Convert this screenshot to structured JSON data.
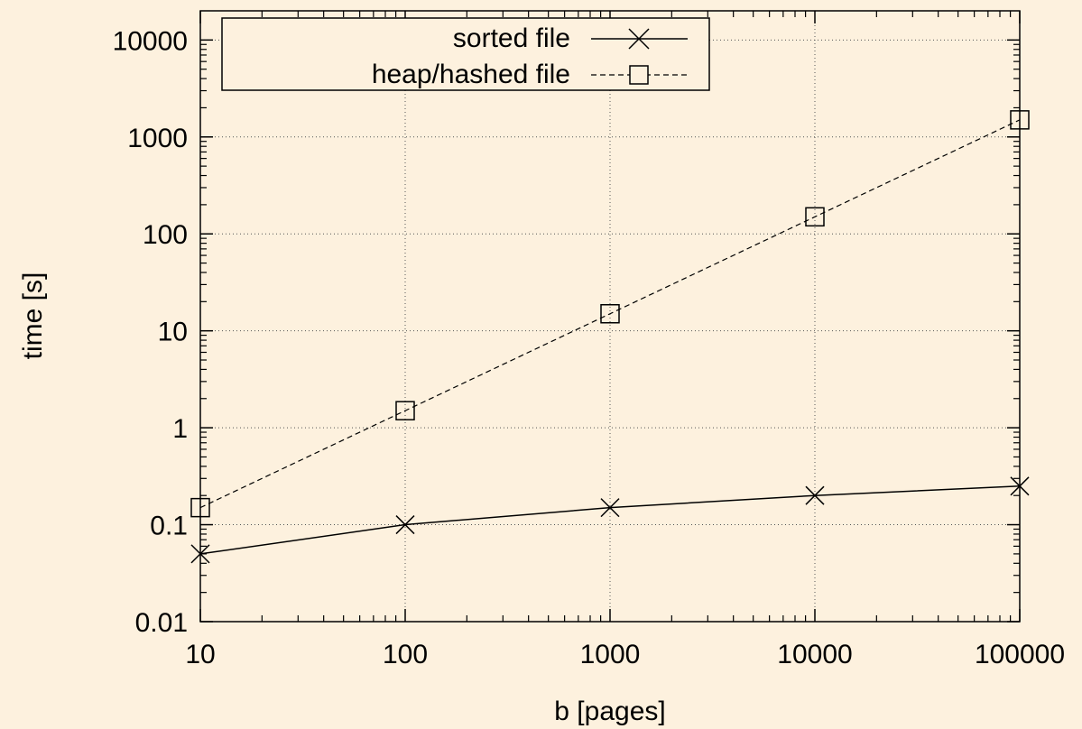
{
  "chart_data": {
    "type": "line",
    "title": "",
    "xlabel": "b [pages]",
    "ylabel": "time [s]",
    "xscale": "log",
    "yscale": "log",
    "xlim": [
      10,
      100000
    ],
    "ylim": [
      0.01,
      20000
    ],
    "xticks": [
      10,
      100,
      1000,
      10000,
      100000
    ],
    "xtick_labels": [
      "10",
      "100",
      "1000",
      "10000",
      "100000"
    ],
    "yticks": [
      0.01,
      0.1,
      1,
      10,
      100,
      1000,
      10000
    ],
    "ytick_labels": [
      "0.01",
      "0.1",
      "1",
      "10",
      "100",
      "1000",
      "10000"
    ],
    "grid": true,
    "legend_position": "top-left",
    "x": [
      10,
      100,
      1000,
      10000,
      100000
    ],
    "series": [
      {
        "name": "sorted file",
        "values": [
          0.05,
          0.1,
          0.15,
          0.2,
          0.25
        ],
        "marker": "cross",
        "line": "solid"
      },
      {
        "name": "heap/hashed file",
        "values": [
          0.15,
          1.5,
          15,
          150,
          1500
        ],
        "marker": "square",
        "line": "dashed"
      }
    ]
  }
}
